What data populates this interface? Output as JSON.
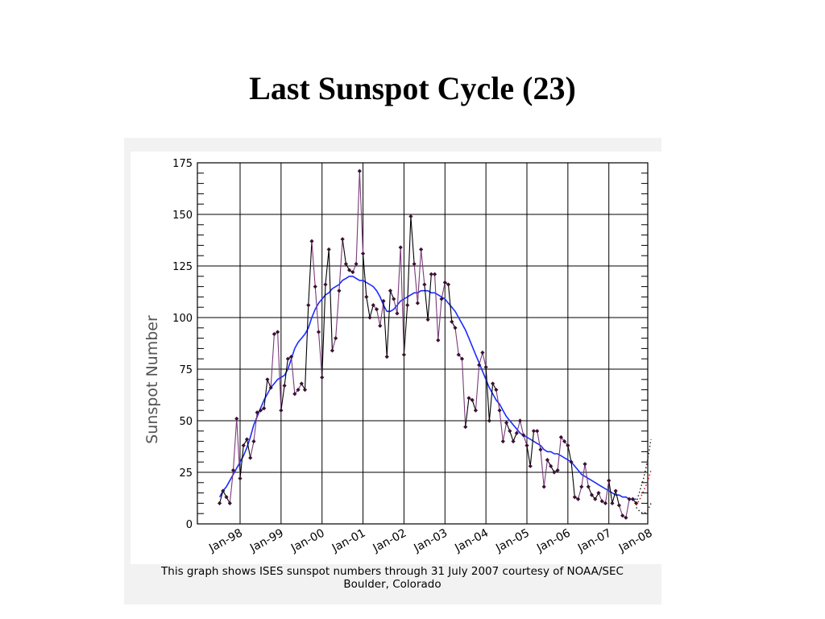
{
  "slide": {
    "title": "Last Sunspot Cycle (23)"
  },
  "caption": {
    "line1": "This graph shows ISES sunspot numbers through 31 July 2007 courtesy of NOAA/SEC",
    "line2": "Boulder, Colorado"
  },
  "colors": {
    "monthly_line": "#000000",
    "monthly_marker": "#3a1030",
    "monthly_segment_alt": "#7a3a7a",
    "smoothed_line": "#1a2cff",
    "prediction_black": "#222222",
    "prediction_red": "#e01010",
    "grid": "#000000",
    "panel_background": "#f2f2f2"
  },
  "chart_data": {
    "type": "line",
    "ylabel": "Sunspot Number",
    "xlabel": "",
    "ylim": [
      0,
      175
    ],
    "yticks": [
      0,
      25,
      50,
      75,
      100,
      125,
      150,
      175
    ],
    "x_tick_labels": [
      "Jan-98",
      "Jan-99",
      "Jan-00",
      "Jan-01",
      "Jan-02",
      "Jan-03",
      "Jan-04",
      "Jan-05",
      "Jan-06",
      "Jan-07",
      "Jan-08"
    ],
    "grid": true,
    "series": [
      {
        "kind": "monthly",
        "start": "1997-07",
        "values": [
          10,
          16,
          13,
          10,
          26,
          51,
          22,
          38,
          41,
          32,
          40,
          54,
          55,
          56,
          70,
          66,
          92,
          93,
          55,
          67,
          80,
          81,
          63,
          65,
          68,
          65,
          106,
          137,
          115,
          93,
          71,
          116,
          133,
          84,
          90,
          113,
          138,
          126,
          123,
          122,
          126,
          171,
          131,
          110,
          100,
          106,
          104,
          96,
          108,
          81,
          113,
          109,
          102,
          134,
          82,
          106,
          149,
          126,
          107,
          133,
          116,
          99,
          121,
          121,
          89,
          109,
          117,
          116,
          98,
          95,
          82,
          80,
          47,
          61,
          60,
          55,
          77,
          83,
          76,
          50,
          68,
          65,
          55,
          40,
          49,
          45,
          40,
          44,
          50,
          43,
          38,
          28,
          45,
          45,
          36,
          18,
          31,
          28,
          25,
          26,
          42,
          40,
          38,
          30,
          13,
          12,
          18,
          29,
          18,
          14,
          12,
          15,
          11,
          10,
          21,
          10,
          16,
          9,
          4,
          3,
          12,
          12,
          10
        ]
      },
      {
        "kind": "smoothed",
        "start": "1997-07",
        "values": [
          13,
          16,
          18,
          21,
          24,
          27,
          30,
          33,
          37,
          42,
          48,
          52,
          56,
          60,
          63,
          66,
          68,
          70,
          71,
          72,
          75,
          80,
          85,
          88,
          90,
          92,
          95,
          100,
          104,
          107,
          109,
          111,
          112,
          114,
          115,
          116,
          118,
          119,
          120,
          120,
          119,
          118,
          118,
          117,
          116,
          115,
          113,
          110,
          106,
          103,
          103,
          104,
          106,
          108,
          109,
          110,
          111,
          112,
          112,
          113,
          113,
          113,
          112,
          112,
          111,
          110,
          109,
          107,
          105,
          103,
          100,
          97,
          94,
          90,
          86,
          82,
          78,
          74,
          70,
          66,
          63,
          60,
          58,
          55,
          52,
          50,
          48,
          46,
          44,
          43,
          42,
          41,
          40,
          39,
          38,
          36,
          35,
          35,
          34,
          34,
          33,
          32,
          31,
          30,
          28,
          26,
          24,
          23,
          22,
          21,
          20,
          19,
          18,
          17,
          16,
          15,
          14,
          14,
          13,
          13,
          12,
          12,
          12
        ]
      }
    ],
    "prediction": {
      "lines": [
        {
          "color": "black",
          "points": [
            [
              0,
              10
            ],
            [
              0.25,
              16
            ],
            [
              0.5,
              22
            ],
            [
              0.75,
              30
            ],
            [
              1,
              41
            ]
          ]
        },
        {
          "color": "red",
          "points": [
            [
              0,
              9
            ],
            [
              0.25,
              12
            ],
            [
              0.5,
              16
            ],
            [
              0.75,
              20
            ],
            [
              1,
              26
            ]
          ]
        },
        {
          "color": "black",
          "points": [
            [
              0,
              8
            ],
            [
              0.25,
              6
            ],
            [
              0.5,
              5
            ],
            [
              0.75,
              6
            ],
            [
              1,
              10
            ]
          ]
        }
      ]
    }
  }
}
